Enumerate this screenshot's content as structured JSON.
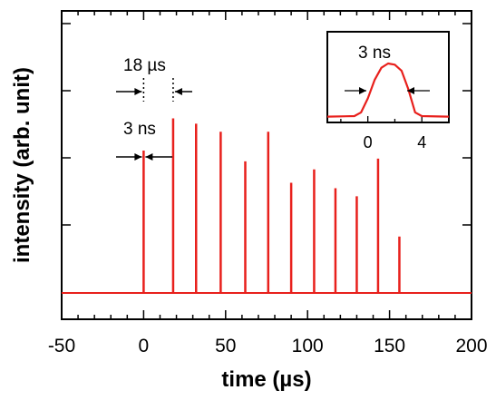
{
  "chart_data": {
    "type": "line",
    "xlabel": "time (µs)",
    "ylabel": "intensity (arb. unit)",
    "xlim": [
      -50,
      200
    ],
    "ylim": [
      0,
      1.05
    ],
    "xticks": [
      -50,
      0,
      50,
      100,
      150,
      200
    ],
    "xtick_labels": [
      "-50",
      "0",
      "50",
      "100",
      "150",
      "200"
    ],
    "y_tick_labels_shown": false,
    "series": [
      {
        "color": "#e8201c",
        "baseline": 0.0,
        "pulses": [
          {
            "x": 0,
            "y": 0.53
          },
          {
            "x": 18,
            "y": 0.65
          },
          {
            "x": 32,
            "y": 0.63
          },
          {
            "x": 47,
            "y": 0.6
          },
          {
            "x": 62,
            "y": 0.49
          },
          {
            "x": 76,
            "y": 0.6
          },
          {
            "x": 90,
            "y": 0.41
          },
          {
            "x": 104,
            "y": 0.46
          },
          {
            "x": 117,
            "y": 0.39
          },
          {
            "x": 130,
            "y": 0.36
          },
          {
            "x": 143,
            "y": 0.5
          },
          {
            "x": 156,
            "y": 0.21
          }
        ]
      }
    ],
    "annotations": {
      "spacing_label": "18 µs",
      "width_label": "3 ns"
    },
    "inset": {
      "title": "3 ns",
      "xticks": [
        0,
        4
      ],
      "xtick_labels": [
        "0",
        "4"
      ],
      "xlim": [
        -3,
        6
      ],
      "pulse_profile": {
        "x": [
          -3,
          -1,
          -0.5,
          0,
          0.5,
          1,
          1.5,
          2,
          2.5,
          3,
          3.5,
          4,
          6
        ],
        "y": [
          0.05,
          0.06,
          0.12,
          0.35,
          0.65,
          0.85,
          0.92,
          0.9,
          0.8,
          0.5,
          0.12,
          0.06,
          0.05
        ]
      }
    }
  }
}
